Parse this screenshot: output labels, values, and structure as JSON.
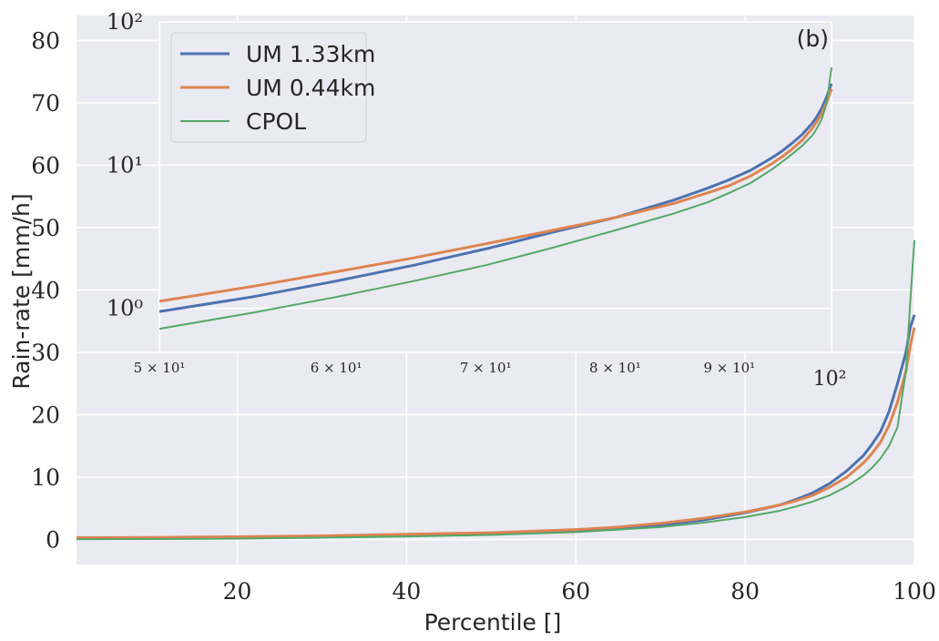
{
  "chart_data": [
    {
      "type": "line",
      "panel": "main",
      "xlabel": "Percentile []",
      "ylabel": "Rain-rate [mm/h]",
      "xlim": [
        1,
        100
      ],
      "ylim": [
        -4,
        84
      ],
      "x_ticks": [
        20,
        40,
        60,
        80,
        100
      ],
      "y_ticks": [
        0,
        10,
        20,
        30,
        40,
        50,
        60,
        70,
        80
      ],
      "grid": true,
      "series": [
        {
          "name": "UM 1.33km",
          "color": "#4c72b0",
          "x": [
            1,
            10,
            20,
            30,
            40,
            50,
            60,
            65,
            70,
            75,
            80,
            84,
            86,
            88,
            90,
            92,
            94,
            95,
            96,
            97,
            98,
            99,
            99.5,
            100
          ],
          "y": [
            0.2,
            0.25,
            0.35,
            0.5,
            0.7,
            0.9,
            1.3,
            1.7,
            2.3,
            3.1,
            4.3,
            5.5,
            6.4,
            7.5,
            9.0,
            11.0,
            13.5,
            15.3,
            17.3,
            20.5,
            25.0,
            30.0,
            34.0,
            36.0
          ]
        },
        {
          "name": "UM 0.44km",
          "color": "#dd8452",
          "x": [
            1,
            10,
            20,
            30,
            40,
            50,
            60,
            65,
            70,
            75,
            80,
            84,
            86,
            88,
            90,
            92,
            94,
            95,
            96,
            97,
            98,
            99,
            99.5,
            100
          ],
          "y": [
            0.3,
            0.35,
            0.45,
            0.6,
            0.85,
            1.1,
            1.6,
            2.0,
            2.6,
            3.4,
            4.4,
            5.5,
            6.2,
            7.1,
            8.4,
            10.0,
            12.3,
            13.8,
            15.6,
            18.3,
            22.0,
            27.0,
            31.0,
            34.0
          ]
        },
        {
          "name": "CPOL",
          "color": "#55a868",
          "x": [
            1,
            10,
            20,
            30,
            40,
            50,
            60,
            65,
            70,
            75,
            80,
            84,
            86,
            88,
            90,
            92,
            94,
            95,
            96,
            97,
            98,
            99,
            99.5,
            100
          ],
          "y": [
            0.05,
            0.08,
            0.15,
            0.3,
            0.5,
            0.75,
            1.2,
            1.6,
            2.0,
            2.7,
            3.6,
            4.6,
            5.3,
            6.1,
            7.1,
            8.5,
            10.3,
            11.5,
            13.0,
            15.0,
            18.0,
            27.0,
            38.0,
            48.0
          ]
        }
      ]
    },
    {
      "type": "line",
      "panel": "inset",
      "annotation": "(b)",
      "xscale": "log",
      "yscale": "log",
      "xlim": [
        50,
        100
      ],
      "ylim": [
        0.5,
        100
      ],
      "x_ticks": [
        {
          "value": 50,
          "label": "5 × 10¹"
        },
        {
          "value": 60,
          "label": "6 × 10¹"
        },
        {
          "value": 70,
          "label": "7 × 10¹"
        },
        {
          "value": 80,
          "label": "8 × 10¹"
        },
        {
          "value": 90,
          "label": "9 × 10¹"
        },
        {
          "value": 100,
          "label": "10²"
        }
      ],
      "y_ticks": [
        {
          "value": 1,
          "label": "10⁰"
        },
        {
          "value": 10,
          "label": "10¹"
        },
        {
          "value": 100,
          "label": "10²"
        }
      ],
      "legend": {
        "position": "top-left",
        "entries": [
          "UM 1.33km",
          "UM 0.44km",
          "CPOL"
        ]
      },
      "grid": true,
      "series": [
        {
          "name": "UM 1.33km",
          "color": "#4c72b0",
          "x": [
            50,
            55,
            60,
            65,
            70,
            75,
            80,
            85,
            88,
            90,
            92,
            94,
            95,
            96,
            97,
            98,
            98.5,
            99,
            99.5,
            100
          ],
          "y": [
            0.95,
            1.2,
            1.55,
            2.0,
            2.6,
            3.4,
            4.3,
            5.7,
            6.9,
            7.9,
            9.2,
            11.2,
            12.5,
            14.2,
            16.3,
            19.5,
            21.8,
            25.0,
            30.0,
            37.0
          ]
        },
        {
          "name": "UM 0.44km",
          "color": "#dd8452",
          "x": [
            50,
            55,
            60,
            65,
            70,
            75,
            80,
            85,
            88,
            90,
            92,
            94,
            95,
            96,
            97,
            98,
            98.5,
            99,
            99.5,
            100
          ],
          "y": [
            1.12,
            1.42,
            1.8,
            2.25,
            2.82,
            3.5,
            4.3,
            5.4,
            6.4,
            7.2,
            8.4,
            10.2,
            11.4,
            12.9,
            14.9,
            18.0,
            20.1,
            23.0,
            27.5,
            34.0
          ]
        },
        {
          "name": "CPOL",
          "color": "#55a868",
          "x": [
            50,
            55,
            60,
            65,
            70,
            75,
            80,
            85,
            88,
            90,
            92,
            94,
            95,
            96,
            97,
            98,
            98.5,
            99,
            99.5,
            100
          ],
          "y": [
            0.72,
            0.93,
            1.2,
            1.55,
            2.0,
            2.65,
            3.5,
            4.6,
            5.5,
            6.4,
            7.5,
            9.3,
            10.5,
            11.9,
            13.6,
            16.0,
            18.0,
            21.0,
            27.0,
            48.0
          ]
        }
      ]
    }
  ]
}
